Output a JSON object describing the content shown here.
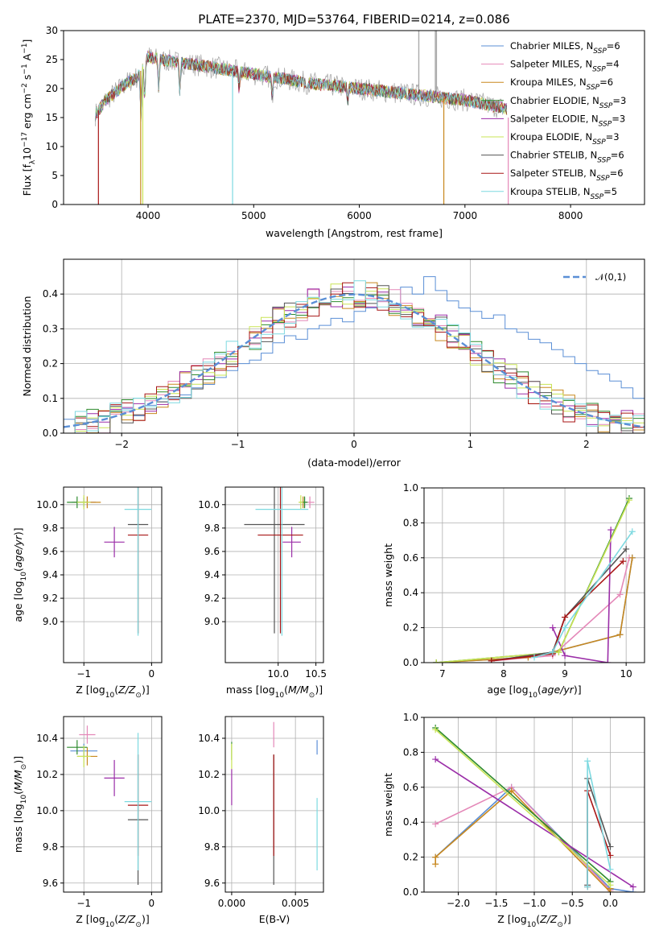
{
  "figure": {
    "title": "PLATE=2370, MJD=53764, FIBERID=0214, z=0.086"
  },
  "colors": {
    "Chabrier MILES": "#5b8fd6",
    "Salpeter MILES": "#e488b8",
    "Kroupa MILES": "#c8881e",
    "Chabrier ELODIE": "#2e8b2e",
    "Salpeter ELODIE": "#9b2ea8",
    "Kroupa ELODIE": "#c9e455",
    "Chabrier STELIB": "#555555",
    "Salpeter STELIB": "#a81616",
    "Kroupa STELIB": "#7dd9e0",
    "data": "#aaaaaa",
    "normal": "#5b8fd6",
    "orange": "#e07a2a"
  },
  "chart_data": [
    {
      "id": "spectrum",
      "type": "line",
      "title": "PLATE=2370, MJD=53764, FIBERID=0214, z=0.086",
      "xlabel": "wavelength [Angstrom, rest frame]",
      "ylabel": "Flux [f_λ10^-17 erg cm^-2 s^-1 A^-1]",
      "xlim": [
        3200,
        8700
      ],
      "ylim": [
        0,
        30
      ],
      "xticks": [
        4000,
        5000,
        6000,
        7000,
        8000
      ],
      "yticks": [
        0,
        5,
        10,
        15,
        20,
        25,
        30
      ],
      "continuum_x": [
        3500,
        3600,
        3800,
        3900,
        4000,
        4100,
        4300,
        4500,
        5000,
        5500,
        6000,
        6500,
        7000,
        7400
      ],
      "continuum_y": [
        15.5,
        18,
        21,
        22,
        25.5,
        25,
        24.5,
        24,
        22.5,
        21,
        20,
        19,
        18,
        16.5
      ],
      "absorption_lines": [
        {
          "x": 3933,
          "depth": 9
        },
        {
          "x": 3968,
          "depth": 7
        },
        {
          "x": 4101,
          "depth": 5
        },
        {
          "x": 4300,
          "depth": 5
        },
        {
          "x": 4861,
          "depth": 3
        },
        {
          "x": 5175,
          "depth": 4
        },
        {
          "x": 5890,
          "depth": 3
        }
      ],
      "data_spikes": [
        {
          "x": 6563,
          "y": 30
        },
        {
          "x": 6720,
          "y": 30
        },
        {
          "x": 6730,
          "y": 30
        }
      ],
      "edge_drops": [
        {
          "x": 3530,
          "series": "Salpeter STELIB"
        },
        {
          "x": 3930,
          "series": "Kroupa MILES"
        },
        {
          "x": 3950,
          "series": "Kroupa ELODIE"
        },
        {
          "x": 4800,
          "series": "Kroupa STELIB"
        },
        {
          "x": 6800,
          "series": "Kroupa MILES"
        },
        {
          "x": 7410,
          "series": "Salpeter MILES"
        }
      ],
      "legend": [
        {
          "name": "Chabrier MILES, N",
          "sub": "SSP",
          "value": "=6"
        },
        {
          "name": "Salpeter MILES, N",
          "sub": "SSP",
          "value": "=4"
        },
        {
          "name": "Kroupa MILES, N",
          "sub": "SSP",
          "value": "=6"
        },
        {
          "name": "Chabrier ELODIE, N",
          "sub": "SSP",
          "value": "=3"
        },
        {
          "name": "Salpeter ELODIE, N",
          "sub": "SSP",
          "value": "=3"
        },
        {
          "name": "Kroupa ELODIE, N",
          "sub": "SSP",
          "value": "=3"
        },
        {
          "name": "Chabrier STELIB, N",
          "sub": "SSP",
          "value": "=6"
        },
        {
          "name": "Salpeter STELIB, N",
          "sub": "SSP",
          "value": "=6"
        },
        {
          "name": "Kroupa STELIB, N",
          "sub": "SSP",
          "value": "=5"
        }
      ],
      "legend_placement": "top-right",
      "grid": false
    },
    {
      "id": "residuals",
      "type": "histogram",
      "xlabel": "(data-model)/error",
      "ylabel": "Normed distribution",
      "xlim": [
        -2.5,
        2.5
      ],
      "ylim": [
        0,
        0.5
      ],
      "xticks": [
        -2,
        -1,
        0,
        1,
        2
      ],
      "yticks": [
        0.0,
        0.1,
        0.2,
        0.3,
        0.4
      ],
      "legend": "𝒩(0,1)",
      "legend_placement": "top-right",
      "grid": true,
      "bin_edges_start": -2.5,
      "bin_width": 0.1,
      "series": [
        {
          "color": "Chabrier MILES",
          "values": [
            0.04,
            0.03,
            0.04,
            0.05,
            0.06,
            0.07,
            0.05,
            0.08,
            0.09,
            0.1,
            0.11,
            0.13,
            0.14,
            0.16,
            0.18,
            0.2,
            0.21,
            0.23,
            0.26,
            0.28,
            0.27,
            0.3,
            0.31,
            0.33,
            0.32,
            0.35,
            0.36,
            0.38,
            0.37,
            0.42,
            0.4,
            0.45,
            0.41,
            0.38,
            0.36,
            0.35,
            0.33,
            0.34,
            0.3,
            0.29,
            0.27,
            0.26,
            0.24,
            0.22,
            0.2,
            0.18,
            0.17,
            0.15,
            0.13,
            0.1
          ]
        }
      ]
    },
    {
      "id": "age-vs-z",
      "type": "errorbar",
      "xlabel": "Z [log10(Z/Z⊙)]",
      "ylabel": "age [log10(age/yr)]",
      "xlim": [
        -1.3,
        0.15
      ],
      "ylim": [
        8.65,
        10.15
      ],
      "xticks": [
        -1,
        0
      ],
      "yticks": [
        9.0,
        9.2,
        9.4,
        9.6,
        9.8,
        10.0
      ],
      "grid": true,
      "points": [
        {
          "series": "Chabrier MILES",
          "x": -1.0,
          "xerr": 0.18,
          "y": 10.02,
          "yerr": 0.04
        },
        {
          "series": "Salpeter MILES",
          "x": -0.95,
          "xerr": 0.12,
          "y": 10.02,
          "yerr": 0.05
        },
        {
          "series": "Kroupa MILES",
          "x": -0.95,
          "xerr": 0.2,
          "y": 10.02,
          "yerr": 0.05
        },
        {
          "series": "Chabrier ELODIE",
          "x": -1.1,
          "xerr": 0.15,
          "y": 10.02,
          "yerr": 0.05
        },
        {
          "series": "Salpeter ELODIE",
          "x": -0.55,
          "xerr": 0.15,
          "y": 9.68,
          "yerr": 0.13
        },
        {
          "series": "Kroupa ELODIE",
          "x": -1.0,
          "xerr": 0.1,
          "y": 10.02,
          "yerr": 0.06
        },
        {
          "series": "Chabrier STELIB",
          "x": -0.2,
          "xerr": 0.15,
          "y": 9.83,
          "yerr": 0.93
        },
        {
          "series": "Salpeter STELIB",
          "x": -0.2,
          "xerr": 0.15,
          "y": 9.74,
          "yerr": 0.84
        },
        {
          "series": "Kroupa STELIB",
          "x": -0.2,
          "xerr": 0.2,
          "y": 9.96,
          "yerr": 1.08
        }
      ]
    },
    {
      "id": "age-vs-mass",
      "type": "errorbar",
      "xlabel": "mass [log10(M/M⊙)]",
      "ylabel": "",
      "xlim": [
        9.3,
        10.6
      ],
      "ylim": [
        8.65,
        10.15
      ],
      "xticks": [
        10.0,
        10.5
      ],
      "yticks": [
        9.0,
        9.2,
        9.4,
        9.6,
        9.8,
        10.0
      ],
      "grid": true,
      "points": [
        {
          "series": "Chabrier MILES",
          "x": 10.35,
          "xerr": 0.04,
          "y": 10.02,
          "yerr": 0.04
        },
        {
          "series": "Salpeter MILES",
          "x": 10.42,
          "xerr": 0.06,
          "y": 10.02,
          "yerr": 0.05
        },
        {
          "series": "Kroupa MILES",
          "x": 10.33,
          "xerr": 0.05,
          "y": 10.02,
          "yerr": 0.05
        },
        {
          "series": "Chabrier ELODIE",
          "x": 10.35,
          "xerr": 0.04,
          "y": 10.02,
          "yerr": 0.05
        },
        {
          "series": "Salpeter ELODIE",
          "x": 10.18,
          "xerr": 0.12,
          "y": 9.68,
          "yerr": 0.13
        },
        {
          "series": "Kroupa ELODIE",
          "x": 10.3,
          "xerr": 0.03,
          "y": 10.02,
          "yerr": 0.06
        },
        {
          "series": "Chabrier STELIB",
          "x": 9.95,
          "xerr": 0.4,
          "y": 9.83,
          "yerr": 0.93
        },
        {
          "series": "Salpeter STELIB",
          "x": 10.03,
          "xerr": 0.3,
          "y": 9.74,
          "yerr": 0.84
        },
        {
          "series": "Kroupa STELIB",
          "x": 10.05,
          "xerr": 0.35,
          "y": 9.96,
          "yerr": 1.08
        }
      ]
    },
    {
      "id": "weight-vs-age",
      "type": "line",
      "xlabel": "age [log10(age/yr)]",
      "ylabel": "mass weight",
      "xlim": [
        6.7,
        10.3
      ],
      "ylim": [
        0,
        1
      ],
      "xticks": [
        7,
        8,
        9,
        10
      ],
      "yticks": [
        0.0,
        0.2,
        0.4,
        0.6,
        0.8,
        1.0
      ],
      "grid": true,
      "series": [
        {
          "color": "Chabrier MILES",
          "x": [
            6.9,
            8.4,
            8.8,
            9.9,
            10.1
          ],
          "y": [
            0.0,
            0.03,
            0.06,
            0.16,
            0.6
          ]
        },
        {
          "color": "Salpeter MILES",
          "x": [
            7.8,
            8.8,
            9.9,
            10.05
          ],
          "y": [
            0.01,
            0.04,
            0.39,
            0.6
          ]
        },
        {
          "color": "Kroupa MILES",
          "x": [
            6.9,
            8.4,
            8.8,
            9.9,
            10.1
          ],
          "y": [
            0.0,
            0.03,
            0.06,
            0.16,
            0.6
          ]
        },
        {
          "color": "Chabrier ELODIE",
          "x": [
            6.9,
            8.9,
            10.05
          ],
          "y": [
            0.0,
            0.06,
            0.94
          ]
        },
        {
          "color": "Salpeter ELODIE",
          "x": [
            8.8,
            9.0,
            9.7,
            9.75
          ],
          "y": [
            0.2,
            0.04,
            0.0,
            0.76
          ]
        },
        {
          "color": "Kroupa ELODIE",
          "x": [
            6.9,
            8.9,
            10.05
          ],
          "y": [
            0.0,
            0.06,
            0.93
          ]
        },
        {
          "color": "Chabrier STELIB",
          "x": [
            7.8,
            8.8,
            9.0,
            10.0
          ],
          "y": [
            0.01,
            0.06,
            0.26,
            0.65
          ]
        },
        {
          "color": "Salpeter STELIB",
          "x": [
            7.8,
            8.8,
            9.0,
            9.95
          ],
          "y": [
            0.01,
            0.05,
            0.26,
            0.58
          ]
        },
        {
          "color": "Kroupa STELIB",
          "x": [
            8.5,
            8.8,
            9.0,
            10.1
          ],
          "y": [
            0.03,
            0.06,
            0.2,
            0.75
          ]
        }
      ]
    },
    {
      "id": "mass-vs-z",
      "type": "errorbar",
      "xlabel": "Z [log10(Z/Z⊙)]",
      "ylabel": "mass [log10(M/M⊙)]",
      "xlim": [
        -1.3,
        0.15
      ],
      "ylim": [
        9.55,
        10.52
      ],
      "xticks": [
        -1,
        0
      ],
      "yticks": [
        9.6,
        9.8,
        10.0,
        10.2,
        10.4
      ],
      "grid": true,
      "points": [
        {
          "series": "Chabrier MILES",
          "x": -1.0,
          "xerr": 0.2,
          "y": 10.33,
          "yerr": 0.04
        },
        {
          "series": "Salpeter MILES",
          "x": -0.95,
          "xerr": 0.12,
          "y": 10.42,
          "yerr": 0.05
        },
        {
          "series": "Kroupa MILES",
          "x": -0.95,
          "xerr": 0.15,
          "y": 10.3,
          "yerr": 0.05
        },
        {
          "series": "Chabrier ELODIE",
          "x": -1.1,
          "xerr": 0.15,
          "y": 10.35,
          "yerr": 0.04
        },
        {
          "series": "Salpeter ELODIE",
          "x": -0.55,
          "xerr": 0.15,
          "y": 10.18,
          "yerr": 0.1
        },
        {
          "series": "Kroupa ELODIE",
          "x": -1.0,
          "xerr": 0.1,
          "y": 10.3,
          "yerr": 0.06
        },
        {
          "series": "Chabrier STELIB",
          "x": -0.2,
          "xerr": 0.15,
          "y": 9.95,
          "yerr": 0.36
        },
        {
          "series": "Salpeter STELIB",
          "x": -0.2,
          "xerr": 0.15,
          "y": 10.03,
          "yerr": 0.28
        },
        {
          "series": "Kroupa STELIB",
          "x": -0.2,
          "xerr": 0.2,
          "y": 10.05,
          "yerr": 0.38
        }
      ]
    },
    {
      "id": "mass-vs-ebv",
      "type": "errorbar",
      "xlabel": "E(B-V)",
      "ylabel": "",
      "xlim": [
        -0.0005,
        0.0072
      ],
      "ylim": [
        9.55,
        10.52
      ],
      "xticks": [
        0.0,
        0.005
      ],
      "xtick_labels": [
        "0.000",
        "0.005"
      ],
      "yticks": [
        9.6,
        9.8,
        10.0,
        10.2,
        10.4
      ],
      "grid": true,
      "points": [
        {
          "series": "Chabrier MILES",
          "x": 0.0067,
          "xerr": 0,
          "y": 10.35,
          "yerr": 0.04
        },
        {
          "series": "Salpeter MILES",
          "x": 0.0033,
          "xerr": 0,
          "y": 10.42,
          "yerr": 0.07
        },
        {
          "series": "Chabrier ELODIE",
          "x": 0.0,
          "xerr": 0,
          "y": 10.33,
          "yerr": 0.05
        },
        {
          "series": "Salpeter ELODIE",
          "x": 0.0,
          "xerr": 0,
          "y": 10.13,
          "yerr": 0.1
        },
        {
          "series": "Kroupa ELODIE",
          "x": 0.0,
          "xerr": 0,
          "y": 10.3,
          "yerr": 0.07
        },
        {
          "series": "Chabrier STELIB",
          "x": 0.0033,
          "xerr": 0,
          "y": 9.95,
          "yerr": 0.36
        },
        {
          "series": "Salpeter STELIB",
          "x": 0.0033,
          "xerr": 0,
          "y": 10.03,
          "yerr": 0.28
        },
        {
          "series": "Kroupa STELIB",
          "x": 0.0067,
          "xerr": 0,
          "y": 9.87,
          "yerr": 0.2
        }
      ]
    },
    {
      "id": "weight-vs-z",
      "type": "line",
      "xlabel": "Z [log10(Z/Z⊙)]",
      "ylabel": "mass weight",
      "xlim": [
        -2.45,
        0.45
      ],
      "ylim": [
        0,
        1
      ],
      "xticks": [
        -2.0,
        -1.5,
        -1.0,
        -0.5,
        0.0
      ],
      "xtick_labels": [
        "−2.0",
        "−1.5",
        "−1.0",
        "−0.5",
        "0.0"
      ],
      "yticks": [
        0.0,
        0.2,
        0.4,
        0.6,
        0.8,
        1.0
      ],
      "grid": true,
      "series": [
        {
          "color": "Chabrier MILES",
          "x": [
            -2.3,
            -1.3,
            0.0,
            0.3
          ],
          "y": [
            0.2,
            0.6,
            0.02,
            0.0
          ]
        },
        {
          "color": "Salpeter MILES",
          "x": [
            -2.3,
            -1.3,
            0.0
          ],
          "y": [
            0.39,
            0.6,
            0.01
          ]
        },
        {
          "color": "Kroupa MILES",
          "x": [
            -2.3,
            -2.3,
            -1.3,
            0.0,
            0.0
          ],
          "y": [
            0.16,
            0.2,
            0.58,
            0.0,
            0.02
          ]
        },
        {
          "color": "Chabrier ELODIE",
          "x": [
            -2.3,
            0.0
          ],
          "y": [
            0.94,
            0.06
          ]
        },
        {
          "color": "Salpeter ELODIE",
          "x": [
            -2.3,
            0.3
          ],
          "y": [
            0.76,
            0.03
          ]
        },
        {
          "color": "Kroupa ELODIE",
          "x": [
            -2.3,
            0.0
          ],
          "y": [
            0.93,
            0.04
          ]
        },
        {
          "color": "Chabrier STELIB",
          "x": [
            -0.3,
            -0.3,
            0.0
          ],
          "y": [
            0.04,
            0.65,
            0.26
          ]
        },
        {
          "color": "Salpeter STELIB",
          "x": [
            -0.3,
            -0.3,
            0.0
          ],
          "y": [
            0.03,
            0.58,
            0.21
          ]
        },
        {
          "color": "Kroupa STELIB",
          "x": [
            -0.3,
            -0.3,
            0.0
          ],
          "y": [
            0.03,
            0.75,
            0.13
          ]
        }
      ]
    }
  ]
}
